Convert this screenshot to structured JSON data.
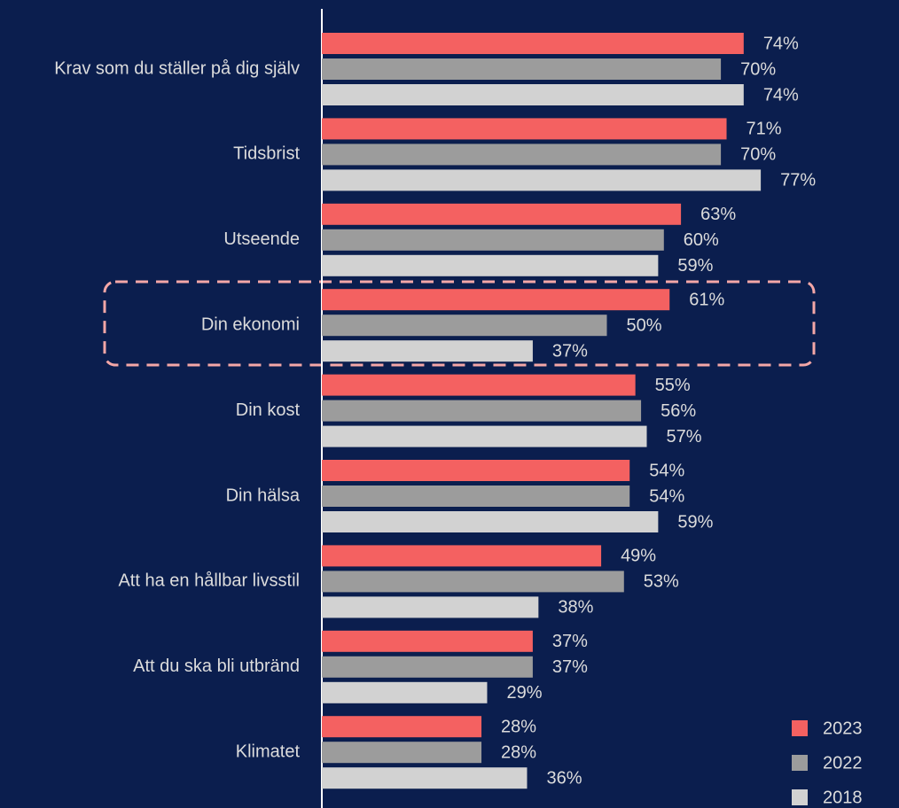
{
  "chart_data": {
    "type": "bar",
    "orientation": "horizontal",
    "categories": [
      "Krav som du ställer på dig själv",
      "Tidsbrist",
      "Utseende",
      "Din ekonomi",
      "Din kost",
      "Din hälsa",
      "Att ha en hållbar livsstil",
      "Att du ska bli utbränd",
      "Klimatet"
    ],
    "series": [
      {
        "name": "2023",
        "color": "#f46161",
        "values": [
          74,
          71,
          63,
          61,
          55,
          54,
          49,
          37,
          28
        ],
        "value_labels": [
          "74%",
          "71%",
          "63%",
          "61%",
          "55%",
          "54%",
          "49%",
          "37%",
          "28%"
        ]
      },
      {
        "name": "2022",
        "color": "#9c9c9c",
        "values": [
          70,
          70,
          60,
          50,
          56,
          54,
          53,
          37,
          28
        ],
        "value_labels": [
          "70%",
          "70%",
          "60%",
          "50%",
          "56%",
          "54%",
          "53%",
          "37%",
          "28%"
        ]
      },
      {
        "name": "2018",
        "color": "#d2d2d2",
        "values": [
          74,
          77,
          59,
          37,
          57,
          59,
          38,
          29,
          36
        ],
        "value_labels": [
          "74%",
          "77%",
          "59%",
          "37%",
          "57%",
          "59%",
          "38%",
          "29%",
          "36%"
        ]
      }
    ],
    "xlim": [
      0,
      100
    ],
    "legend": "bottom-right"
  }
}
